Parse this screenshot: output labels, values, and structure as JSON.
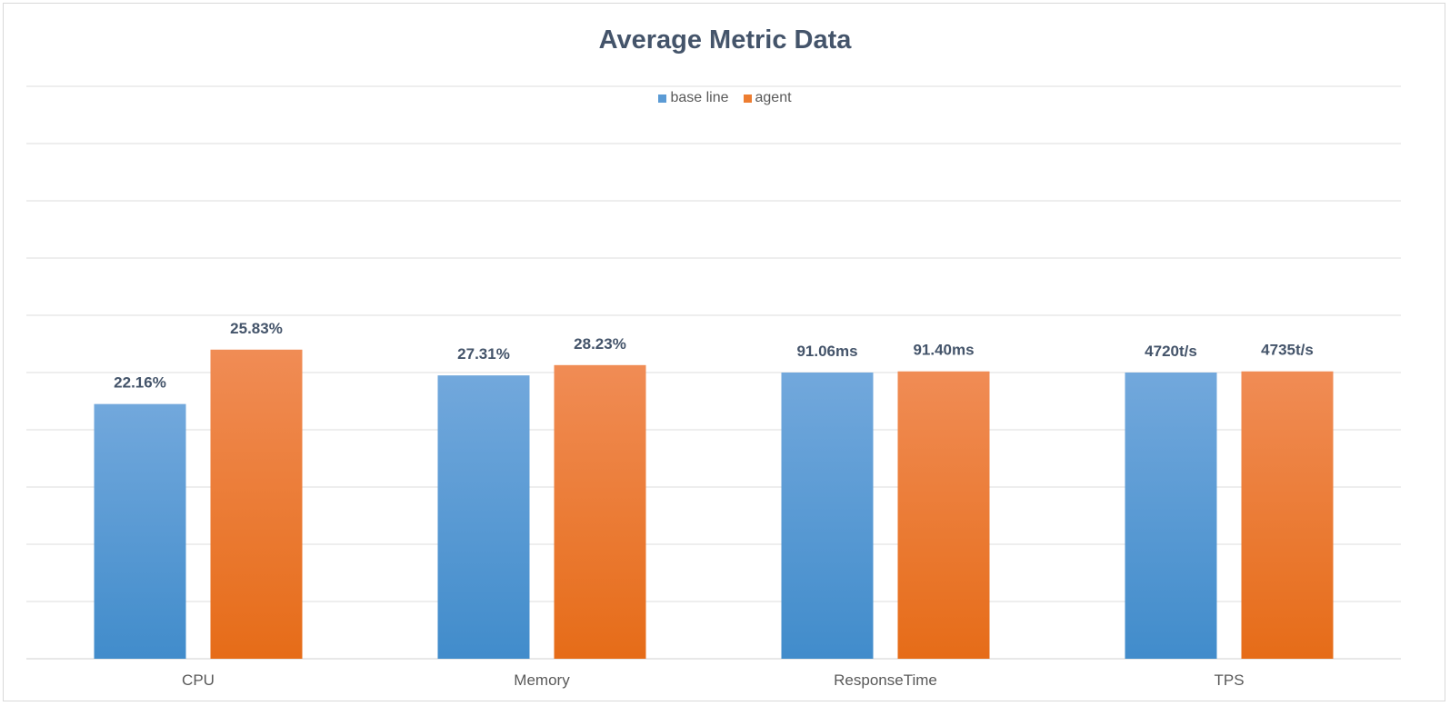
{
  "chart_data": {
    "type": "bar",
    "title": "Average Metric Data",
    "categories": [
      "CPU",
      "Memory",
      "ResponseTime",
      "TPS"
    ],
    "series": [
      {
        "name": "base line",
        "color": "#5b9bd5",
        "values": [
          22.16,
          27.31,
          91.06,
          4720
        ],
        "labels": [
          "22.16%",
          "27.31%",
          "91.06ms",
          "4720t/s"
        ],
        "plotted_levels": [
          4.45,
          4.95,
          5.0,
          5.0
        ]
      },
      {
        "name": "agent",
        "color": "#ed7d31",
        "values": [
          25.83,
          28.23,
          91.4,
          4735
        ],
        "labels": [
          "25.83%",
          "28.23%",
          "91.40ms",
          "4735t/s"
        ],
        "plotted_levels": [
          5.4,
          5.13,
          5.02,
          5.02
        ]
      }
    ],
    "gridlines": 10,
    "legend": "top",
    "grid": true
  }
}
